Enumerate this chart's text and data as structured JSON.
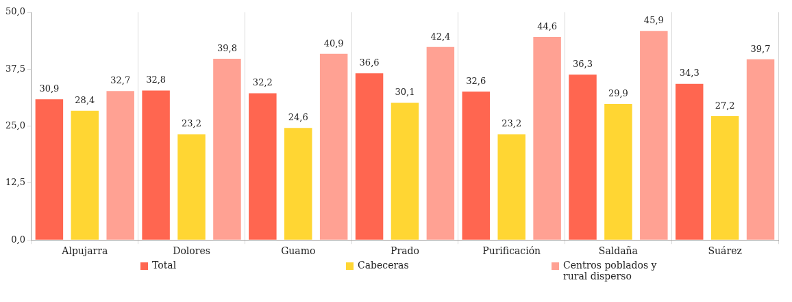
{
  "chart_data": {
    "type": "bar",
    "categories": [
      "Alpujarra",
      "Dolores",
      "Guamo",
      "Prado",
      "Purificación",
      "Saldaña",
      "Suárez"
    ],
    "series": [
      {
        "name": "Total",
        "color": "#ff6650",
        "values": [
          30.9,
          32.8,
          32.2,
          36.6,
          32.6,
          36.3,
          34.3
        ],
        "value_labels": [
          "30,9",
          "32,8",
          "32,2",
          "36,6",
          "32,6",
          "36,3",
          "34,3"
        ]
      },
      {
        "name": "Cabeceras",
        "color": "#ffd633",
        "values": [
          28.4,
          23.2,
          24.6,
          30.1,
          23.2,
          29.9,
          27.2
        ],
        "value_labels": [
          "28,4",
          "23,2",
          "24,6",
          "30,1",
          "23,2",
          "29,9",
          "27,2"
        ]
      },
      {
        "name": "Centros poblados y rural disperso",
        "color": "#ffa193",
        "values": [
          32.7,
          39.8,
          40.9,
          42.4,
          44.6,
          45.9,
          39.7
        ],
        "value_labels": [
          "32,7",
          "39,8",
          "40,9",
          "42,4",
          "44,6",
          "45,9",
          "39,7"
        ]
      }
    ],
    "ylim": [
      0,
      50
    ],
    "yticks": [
      {
        "value": 0,
        "label": "0,0"
      },
      {
        "value": 12.5,
        "label": "12,5"
      },
      {
        "value": 25,
        "label": "25,0"
      },
      {
        "value": 37.5,
        "label": "37,5"
      },
      {
        "value": 50,
        "label": "50,0"
      }
    ],
    "grid": "x",
    "legend": "bottom"
  }
}
